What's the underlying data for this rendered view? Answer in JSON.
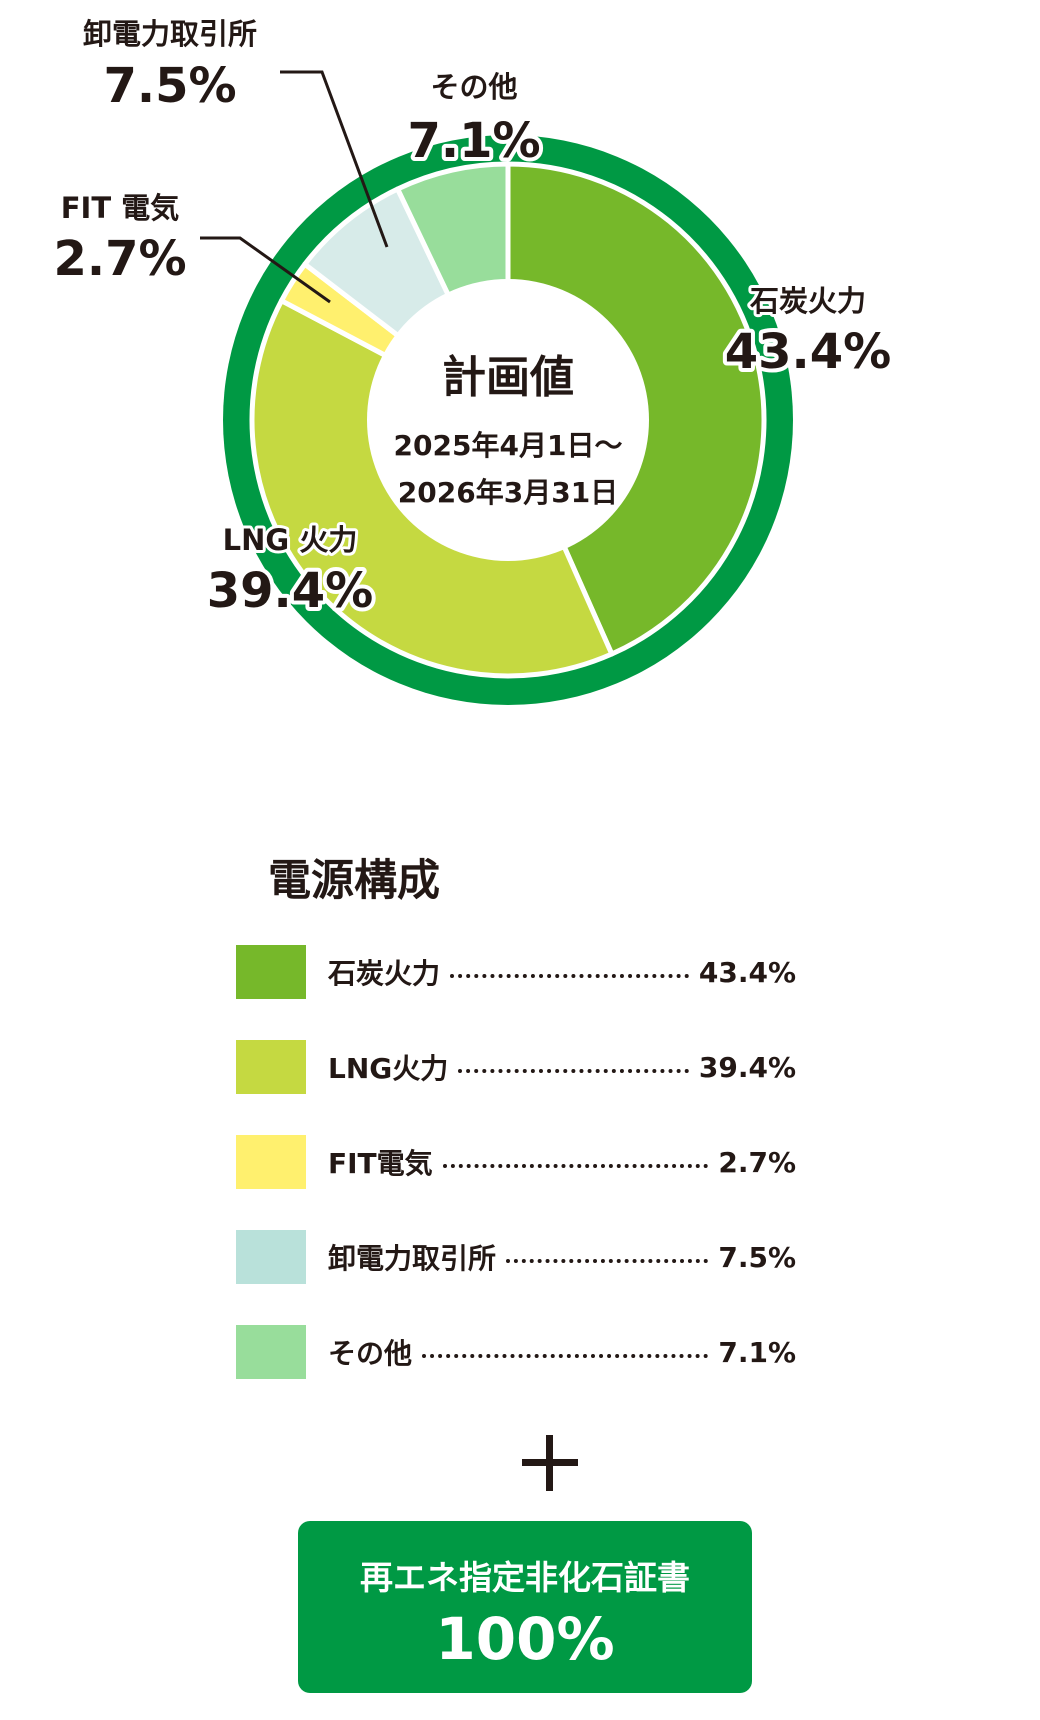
{
  "chart_data": {
    "type": "pie",
    "variant": "donut",
    "center_title": "計画値",
    "center_period": [
      "2025年4月1日～",
      "2026年3月31日"
    ],
    "categories": [
      "石炭火力",
      "LNG火力",
      "FIT電気",
      "卸電力取引所",
      "その他"
    ],
    "values": [
      43.4,
      39.4,
      2.7,
      7.5,
      7.1
    ],
    "unit": "%",
    "slice_labels": [
      {
        "name": "石炭火力",
        "value": "43.4%"
      },
      {
        "name": "LNG 火力",
        "value": "39.4%"
      },
      {
        "name": "FIT 電気",
        "value": "2.7%"
      },
      {
        "name": "卸電力取引所",
        "value": "7.5%"
      },
      {
        "name": "その他",
        "value": "7.1%"
      }
    ],
    "colors": [
      "#76b82a",
      "#c5d941",
      "#fff06e",
      "#d7ebe9",
      "#98dd9b"
    ],
    "outer_ring_color": "#009944"
  },
  "legend": {
    "title": "電源構成",
    "items": [
      {
        "name": "石炭火力",
        "value": "43.4%",
        "color": "#76b82a"
      },
      {
        "name": "LNG火力",
        "value": "39.4%",
        "color": "#c5d941"
      },
      {
        "name": "FIT電気",
        "value": "2.7%",
        "color": "#fff06e"
      },
      {
        "name": "卸電力取引所",
        "value": "7.5%",
        "color": "#b9e1da"
      },
      {
        "name": "その他",
        "value": "7.1%",
        "color": "#98dd9b"
      }
    ]
  },
  "certificate": {
    "name": "再エネ指定非化石証書",
    "value": "100%",
    "color": "#009944"
  }
}
